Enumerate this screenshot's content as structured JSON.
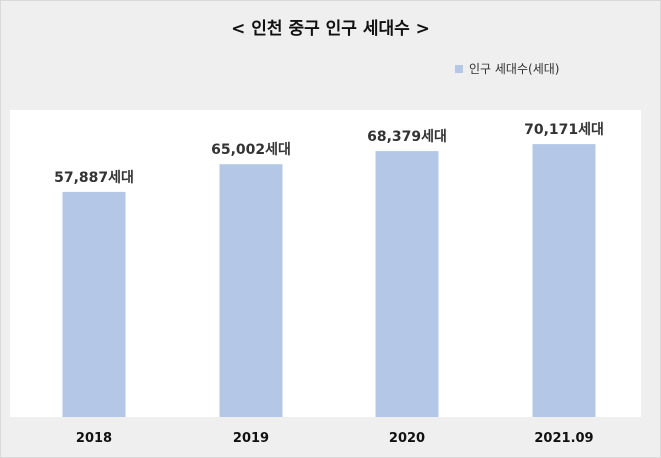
{
  "chart_data": {
    "type": "bar",
    "title": "< 인천 중구 인구 세대수 >",
    "categories": [
      "2018",
      "2019",
      "2020",
      "2021.09"
    ],
    "series": [
      {
        "name": "인구 세대수(세대)",
        "values": [
          57887,
          65002,
          68379,
          70171
        ]
      }
    ],
    "data_labels": [
      "57,887세대",
      "65,002세대",
      "68,379세대",
      "70,171세대"
    ],
    "ylim": [
      0,
      90000
    ],
    "grid": false,
    "legend": "top-right",
    "bar_color": "#b4c7e7"
  }
}
